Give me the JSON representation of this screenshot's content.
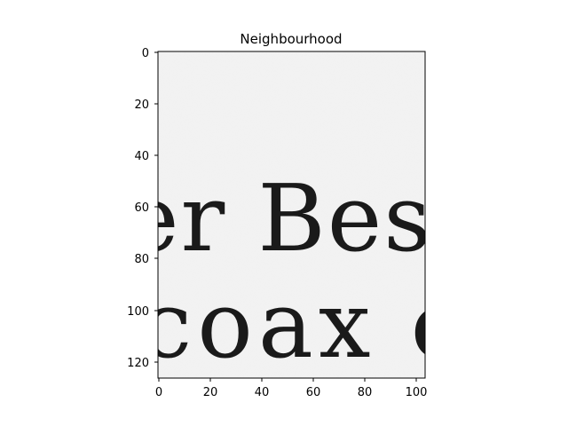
{
  "title": "Neighbourhood",
  "image": {
    "description_lines": [
      "er Best",
      "coax c"
    ],
    "background_color": "#f1f1f1",
    "ink_color": "#1a1a1a"
  },
  "axes": {
    "x_ticks": [
      "0",
      "20",
      "40",
      "60",
      "80",
      "100"
    ],
    "y_ticks": [
      "0",
      "20",
      "40",
      "60",
      "80",
      "100",
      "120"
    ],
    "x_range": [
      0,
      104
    ],
    "y_range": [
      0,
      126
    ]
  }
}
